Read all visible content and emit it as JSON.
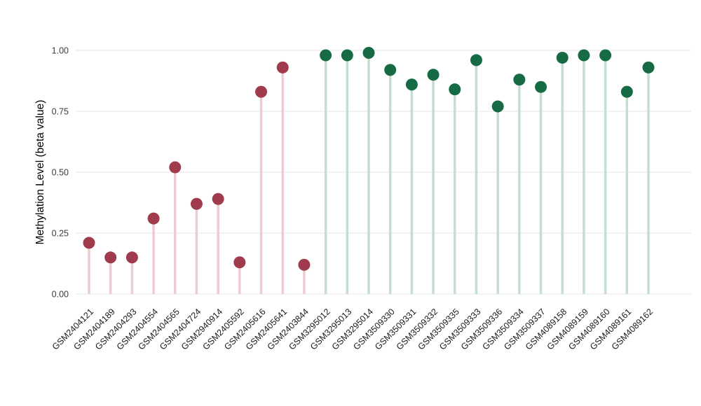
{
  "chart_data": {
    "type": "scatter",
    "variant": "lollipop",
    "title": "",
    "xlabel": "",
    "ylabel": "Methylation Level (beta value)",
    "ylim": [
      0,
      1.0
    ],
    "yticks": [
      "0.00",
      "0.25",
      "0.50",
      "0.75",
      "1.00"
    ],
    "grid": true,
    "legend": "none",
    "categories": [
      "GSM2404121",
      "GSM2404189",
      "GSM2404293",
      "GSM2404554",
      "GSM2404565",
      "GSM2404724",
      "GSM2940914",
      "GSM2405592",
      "GSM2405616",
      "GSM2405641",
      "GSM2403844",
      "GSM3295012",
      "GSM3295013",
      "GSM3295014",
      "GSM3509330",
      "GSM3509331",
      "GSM3509332",
      "GSM3509335",
      "GSM3509333",
      "GSM3509336",
      "GSM3509334",
      "GSM3509337",
      "GSM4089158",
      "GSM4089159",
      "GSM4089160",
      "GSM4089161",
      "GSM4089162"
    ],
    "values": [
      0.21,
      0.15,
      0.15,
      0.31,
      0.52,
      0.37,
      0.39,
      0.13,
      0.83,
      0.93,
      0.12,
      0.98,
      0.98,
      0.99,
      0.92,
      0.86,
      0.9,
      0.84,
      0.96,
      0.77,
      0.88,
      0.85,
      0.97,
      0.98,
      0.98,
      0.83,
      0.93
    ],
    "point_groups": [
      0,
      0,
      0,
      0,
      0,
      0,
      0,
      0,
      0,
      0,
      0,
      1,
      1,
      1,
      1,
      1,
      1,
      1,
      1,
      1,
      1,
      1,
      1,
      1,
      1,
      1,
      1
    ],
    "palette": [
      {
        "dot": "#a03b4e",
        "stem": "#ecccd3"
      },
      {
        "dot": "#166b45",
        "stem": "#c6ddd2"
      }
    ],
    "background": "#ffffff",
    "gridline_color": "#e9e9e9",
    "tick_label_color": "#3c3c3c",
    "axis_label_color": "#000000"
  }
}
